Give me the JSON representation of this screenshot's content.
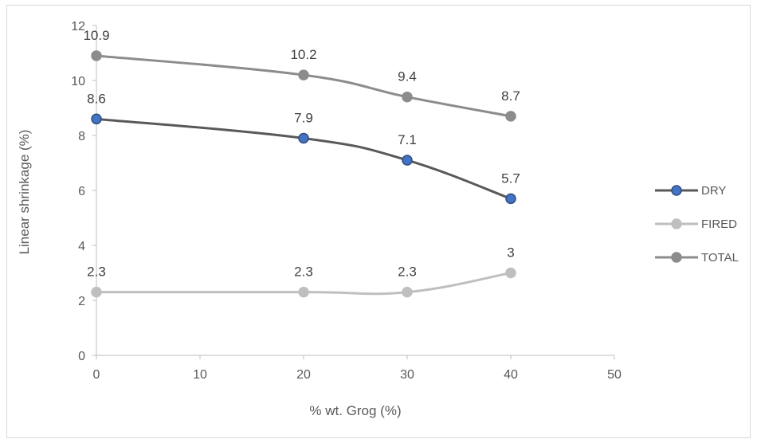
{
  "chart_data": {
    "type": "line",
    "xlabel": "% wt. Grog (%)",
    "ylabel": "Linear shrinkage (%)",
    "xlim": [
      0,
      50
    ],
    "ylim": [
      0,
      12
    ],
    "x_ticks": [
      0,
      10,
      20,
      30,
      40,
      50
    ],
    "y_ticks": [
      0,
      2,
      4,
      6,
      8,
      10,
      12
    ],
    "grid": false,
    "legend_position": "right",
    "x": [
      0,
      20,
      30,
      40
    ],
    "series": [
      {
        "name": "DRY",
        "values": [
          8.6,
          7.9,
          7.1,
          5.7
        ],
        "labels": [
          "8.6",
          "7.9",
          "7.1",
          "5.7"
        ],
        "line_color": "#595959",
        "marker_color": "#4472C4",
        "marker_stroke": "#2F4F7F"
      },
      {
        "name": "FIRED",
        "values": [
          2.3,
          2.3,
          2.3,
          3
        ],
        "labels": [
          "2.3",
          "2.3",
          "2.3",
          "3"
        ],
        "line_color": "#BFBFBF",
        "marker_color": "#BFBFBF",
        "marker_stroke": "#BFBFBF"
      },
      {
        "name": "TOTAL",
        "values": [
          10.9,
          10.2,
          9.4,
          8.7
        ],
        "labels": [
          "10.9",
          "10.2",
          "9.4",
          "8.7"
        ],
        "line_color": "#8C8C8C",
        "marker_color": "#8C8C8C",
        "marker_stroke": "#8C8C8C"
      }
    ]
  }
}
